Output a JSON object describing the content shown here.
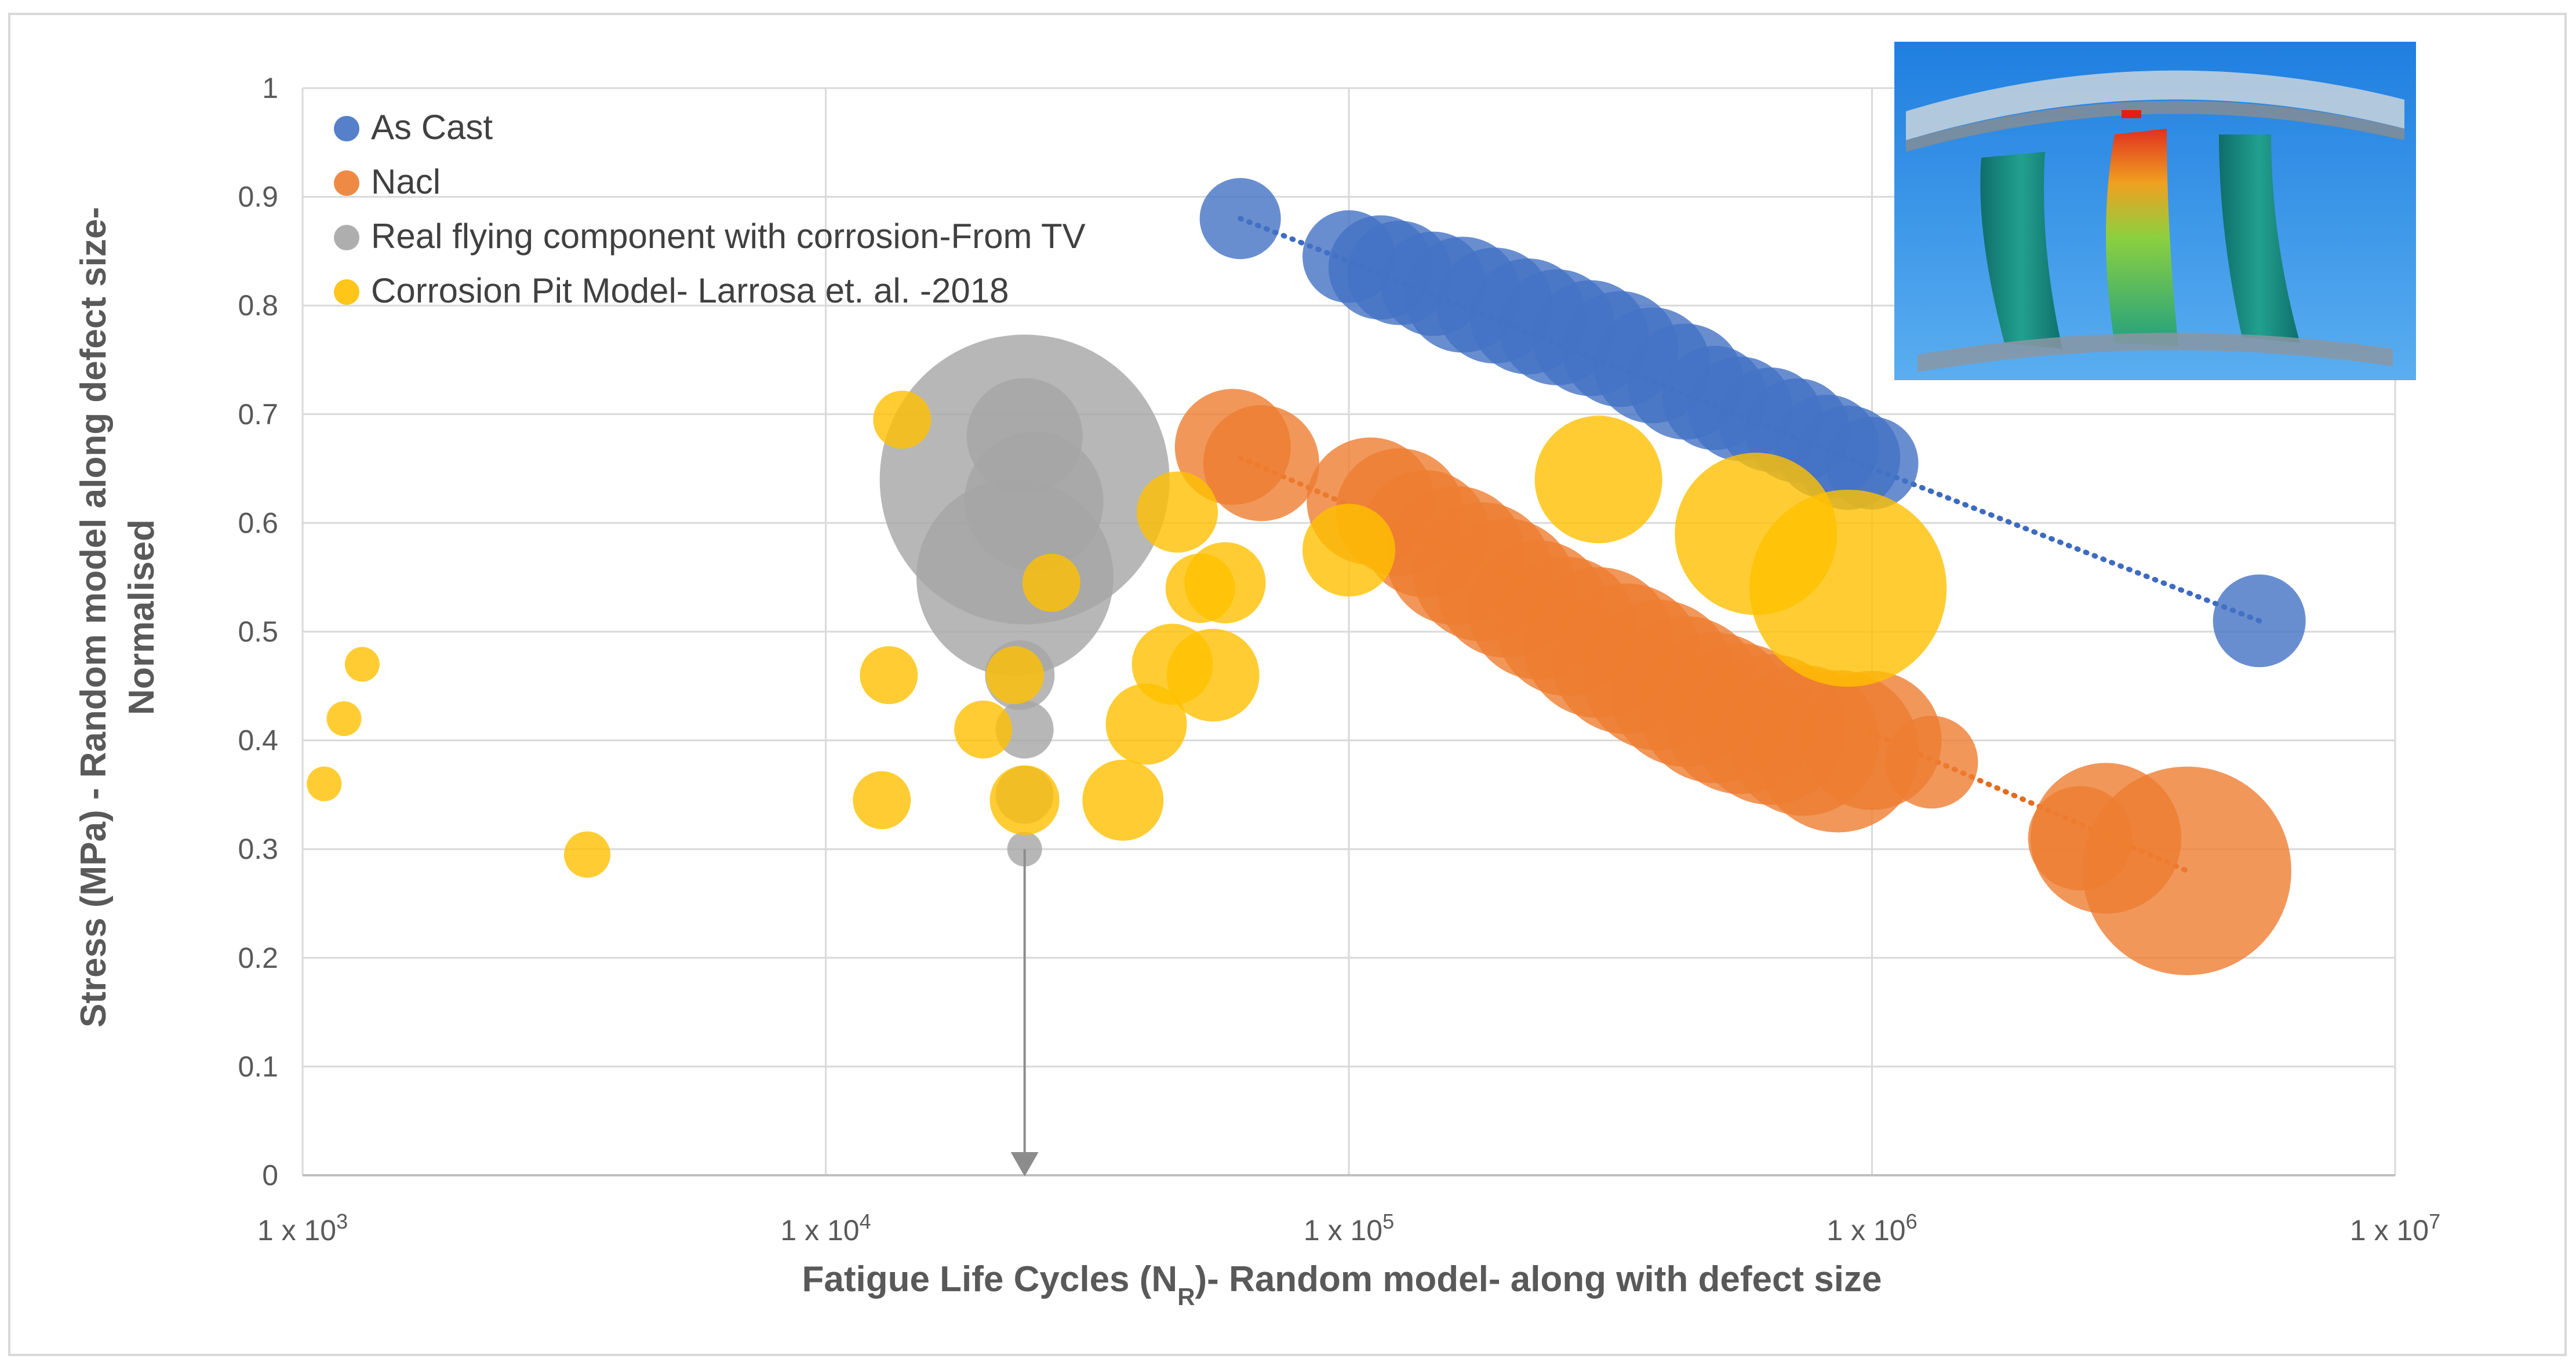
{
  "chart_data": {
    "type": "scatter",
    "subtype": "bubble",
    "title": "",
    "xlabel_prefix": "Fatigue Life Cycles (N",
    "xlabel_sub": "R",
    "xlabel_suffix": ")- Random model- along with defect size",
    "ylabel_line1": "Stress (MPa) - Random model along  defect size-",
    "ylabel_line2": "Normalised",
    "x_scale": "log",
    "xlim": [
      1000,
      10000000
    ],
    "ylim": [
      0,
      1
    ],
    "x_ticks": [
      {
        "value": 1000,
        "base": "1 x 10",
        "exp": "3"
      },
      {
        "value": 10000,
        "base": "1 x 10",
        "exp": "4"
      },
      {
        "value": 100000,
        "base": "1 x 10",
        "exp": "5"
      },
      {
        "value": 1000000,
        "base": "1 x 10",
        "exp": "6"
      },
      {
        "value": 10000000,
        "base": "1 x 10",
        "exp": "7"
      }
    ],
    "y_ticks": [
      {
        "value": 0,
        "label": "0"
      },
      {
        "value": 0.1,
        "label": "0.1"
      },
      {
        "value": 0.2,
        "label": "0.2"
      },
      {
        "value": 0.3,
        "label": "0.3"
      },
      {
        "value": 0.4,
        "label": "0.4"
      },
      {
        "value": 0.5,
        "label": "0.5"
      },
      {
        "value": 0.6,
        "label": "0.6"
      },
      {
        "value": 0.7,
        "label": "0.7"
      },
      {
        "value": 0.8,
        "label": "0.8"
      },
      {
        "value": 0.9,
        "label": "0.9"
      },
      {
        "value": 1,
        "label": "1"
      }
    ],
    "grid": true,
    "legend_position": "top-left",
    "series": [
      {
        "name": "As Cast",
        "color": "#4472c4",
        "alpha": 0.8,
        "trendline": {
          "x": [
            62000,
            5500000
          ],
          "y": [
            0.88,
            0.51
          ]
        },
        "points": [
          {
            "x": 62000,
            "y": 0.88,
            "size": 0.07
          },
          {
            "x": 5500000,
            "y": 0.51,
            "size": 0.08
          },
          {
            "x": 100000,
            "y": 0.845,
            "size": 0.08
          },
          {
            "x": 115000,
            "y": 0.835,
            "size": 0.09
          },
          {
            "x": 125000,
            "y": 0.83,
            "size": 0.09
          },
          {
            "x": 145000,
            "y": 0.82,
            "size": 0.09
          },
          {
            "x": 165000,
            "y": 0.81,
            "size": 0.1
          },
          {
            "x": 190000,
            "y": 0.8,
            "size": 0.1
          },
          {
            "x": 220000,
            "y": 0.79,
            "size": 0.1
          },
          {
            "x": 250000,
            "y": 0.78,
            "size": 0.1
          },
          {
            "x": 290000,
            "y": 0.77,
            "size": 0.1
          },
          {
            "x": 330000,
            "y": 0.76,
            "size": 0.1
          },
          {
            "x": 380000,
            "y": 0.745,
            "size": 0.1
          },
          {
            "x": 440000,
            "y": 0.73,
            "size": 0.1
          },
          {
            "x": 500000,
            "y": 0.715,
            "size": 0.09
          },
          {
            "x": 560000,
            "y": 0.705,
            "size": 0.09
          },
          {
            "x": 640000,
            "y": 0.695,
            "size": 0.09
          },
          {
            "x": 720000,
            "y": 0.685,
            "size": 0.09
          },
          {
            "x": 820000,
            "y": 0.67,
            "size": 0.09
          },
          {
            "x": 900000,
            "y": 0.66,
            "size": 0.09
          },
          {
            "x": 1000000,
            "y": 0.655,
            "size": 0.08
          }
        ]
      },
      {
        "name": "Nacl",
        "color": "#ed7d31",
        "alpha": 0.8,
        "trendline": {
          "x": [
            62000,
            4000000
          ],
          "y": [
            0.66,
            0.28
          ]
        },
        "points": [
          {
            "x": 60000,
            "y": 0.67,
            "size": 0.1
          },
          {
            "x": 68000,
            "y": 0.655,
            "size": 0.1
          },
          {
            "x": 110000,
            "y": 0.62,
            "size": 0.11
          },
          {
            "x": 125000,
            "y": 0.61,
            "size": 0.11
          },
          {
            "x": 140000,
            "y": 0.59,
            "size": 0.11
          },
          {
            "x": 160000,
            "y": 0.57,
            "size": 0.12
          },
          {
            "x": 180000,
            "y": 0.555,
            "size": 0.12
          },
          {
            "x": 200000,
            "y": 0.54,
            "size": 0.12
          },
          {
            "x": 230000,
            "y": 0.52,
            "size": 0.12
          },
          {
            "x": 260000,
            "y": 0.505,
            "size": 0.12
          },
          {
            "x": 300000,
            "y": 0.49,
            "size": 0.13
          },
          {
            "x": 340000,
            "y": 0.475,
            "size": 0.13
          },
          {
            "x": 390000,
            "y": 0.46,
            "size": 0.13
          },
          {
            "x": 440000,
            "y": 0.445,
            "size": 0.13
          },
          {
            "x": 500000,
            "y": 0.43,
            "size": 0.13
          },
          {
            "x": 560000,
            "y": 0.42,
            "size": 0.13
          },
          {
            "x": 640000,
            "y": 0.41,
            "size": 0.13
          },
          {
            "x": 740000,
            "y": 0.4,
            "size": 0.13
          },
          {
            "x": 860000,
            "y": 0.39,
            "size": 0.14
          },
          {
            "x": 1000000,
            "y": 0.4,
            "size": 0.12
          },
          {
            "x": 1300000,
            "y": 0.38,
            "size": 0.08
          },
          {
            "x": 2500000,
            "y": 0.31,
            "size": 0.09
          },
          {
            "x": 2800000,
            "y": 0.31,
            "size": 0.13
          },
          {
            "x": 4000000,
            "y": 0.28,
            "size": 0.18
          }
        ]
      },
      {
        "name": "Real flying component with corrosion-From TV",
        "color": "#a5a5a5",
        "alpha": 0.8,
        "arrow_x": 24000,
        "points": [
          {
            "x": 24000,
            "y": 0.64,
            "size": 0.25
          },
          {
            "x": 23000,
            "y": 0.55,
            "size": 0.17
          },
          {
            "x": 24000,
            "y": 0.68,
            "size": 0.1
          },
          {
            "x": 25000,
            "y": 0.62,
            "size": 0.12
          },
          {
            "x": 23500,
            "y": 0.46,
            "size": 0.06
          },
          {
            "x": 24000,
            "y": 0.41,
            "size": 0.05
          },
          {
            "x": 24000,
            "y": 0.35,
            "size": 0.05
          },
          {
            "x": 24000,
            "y": 0.3,
            "size": 0.03
          }
        ]
      },
      {
        "name": "Corrosion Pit Model- Larrosa et. al. -2018",
        "color": "#ffc000",
        "alpha": 0.8,
        "points": [
          {
            "x": 1100,
            "y": 0.36,
            "size": 0.03
          },
          {
            "x": 1200,
            "y": 0.42,
            "size": 0.03
          },
          {
            "x": 1300,
            "y": 0.47,
            "size": 0.03
          },
          {
            "x": 3500,
            "y": 0.295,
            "size": 0.04
          },
          {
            "x": 12800,
            "y": 0.345,
            "size": 0.05
          },
          {
            "x": 13200,
            "y": 0.46,
            "size": 0.05
          },
          {
            "x": 14000,
            "y": 0.695,
            "size": 0.05
          },
          {
            "x": 20000,
            "y": 0.41,
            "size": 0.05
          },
          {
            "x": 23000,
            "y": 0.46,
            "size": 0.05
          },
          {
            "x": 24000,
            "y": 0.345,
            "size": 0.06
          },
          {
            "x": 27000,
            "y": 0.545,
            "size": 0.05
          },
          {
            "x": 37000,
            "y": 0.345,
            "size": 0.07
          },
          {
            "x": 41000,
            "y": 0.415,
            "size": 0.07
          },
          {
            "x": 46000,
            "y": 0.47,
            "size": 0.07
          },
          {
            "x": 47000,
            "y": 0.61,
            "size": 0.07
          },
          {
            "x": 52000,
            "y": 0.54,
            "size": 0.06
          },
          {
            "x": 55000,
            "y": 0.46,
            "size": 0.08
          },
          {
            "x": 58000,
            "y": 0.545,
            "size": 0.07
          },
          {
            "x": 100000,
            "y": 0.575,
            "size": 0.08
          },
          {
            "x": 300000,
            "y": 0.64,
            "size": 0.11
          },
          {
            "x": 600000,
            "y": 0.59,
            "size": 0.14
          },
          {
            "x": 900000,
            "y": 0.54,
            "size": 0.17
          }
        ]
      }
    ]
  }
}
